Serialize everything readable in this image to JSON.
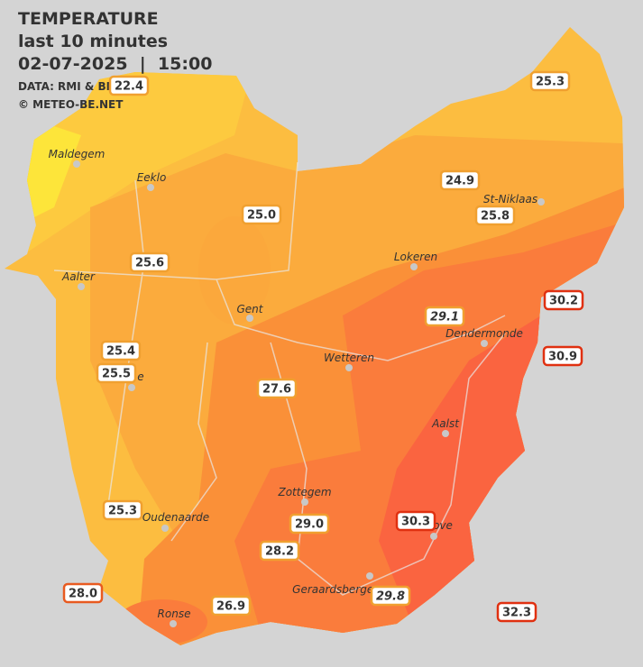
{
  "header": {
    "title": "TEMPERATURE",
    "subtitle": "last 10 minutes",
    "datetime": "02-07-2025  |  15:00",
    "source": "DATA: RMI & BMCB",
    "copyright": "© METEO-BE.NET"
  },
  "cities": [
    "Maldegem",
    "Eeklo",
    "St-Niklaas",
    "Lokeren",
    "Aalter",
    "Gent",
    "Dendermonde",
    "Wetteren",
    "e",
    "Aalst",
    "Zottegem",
    "Oudenaarde",
    "ove",
    "Ronse",
    "Geraardsbergen"
  ],
  "stations": [
    {
      "text": "22.4",
      "border": "#f0a030",
      "italic": false
    },
    {
      "text": "25.3",
      "border": "#f0a030",
      "italic": false
    },
    {
      "text": "24.9",
      "border": "#f0a030",
      "italic": false
    },
    {
      "text": "25.8",
      "border": "#f0a030",
      "italic": false
    },
    {
      "text": "25.0",
      "border": "#f0a030",
      "italic": false
    },
    {
      "text": "25.6",
      "border": "#f0a030",
      "italic": false
    },
    {
      "text": "30.2",
      "border": "#e03010",
      "italic": false
    },
    {
      "text": "29.1",
      "border": "#f0a030",
      "italic": true
    },
    {
      "text": "30.9",
      "border": "#e03010",
      "italic": false
    },
    {
      "text": "25.4",
      "border": "#f0a030",
      "italic": false
    },
    {
      "text": "25.5",
      "border": "#f0a030",
      "italic": false
    },
    {
      "text": "27.6",
      "border": "#f0a030",
      "italic": false
    },
    {
      "text": "25.3",
      "border": "#f0a030",
      "italic": false
    },
    {
      "text": "29.0",
      "border": "#f0a030",
      "italic": false
    },
    {
      "text": "30.3",
      "border": "#e03010",
      "italic": false
    },
    {
      "text": "28.2",
      "border": "#f0a030",
      "italic": false
    },
    {
      "text": "28.0",
      "border": "#e85a20",
      "italic": false
    },
    {
      "text": "26.9",
      "border": "#f0a030",
      "italic": false
    },
    {
      "text": "29.8",
      "border": "#f0a030",
      "italic": true
    },
    {
      "text": "32.3",
      "border": "#e03010",
      "italic": false
    }
  ]
}
